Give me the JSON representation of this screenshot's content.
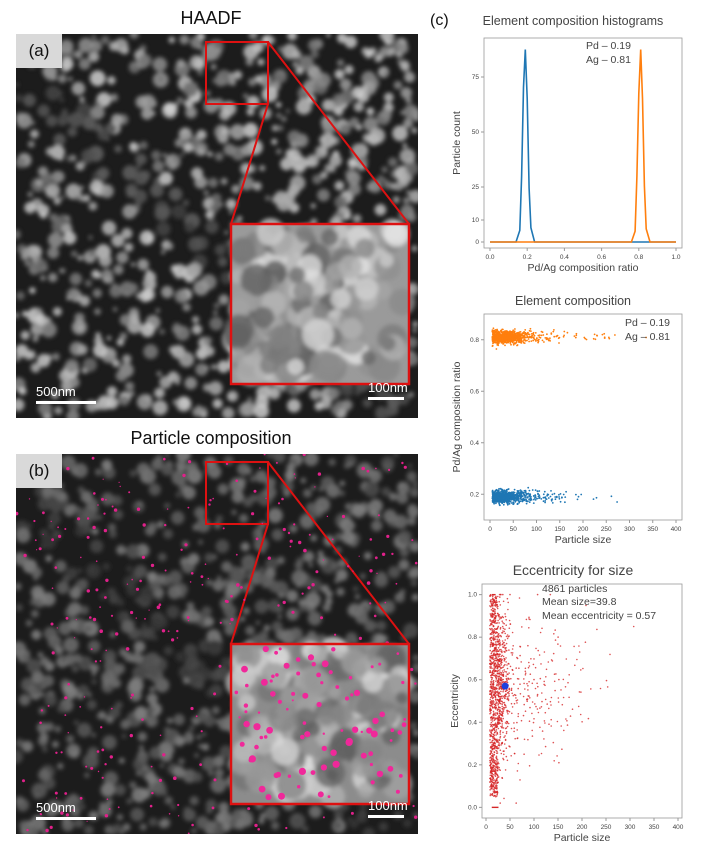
{
  "panel_a": {
    "title": "HAADF",
    "tag": "(a)",
    "scale_main": "500nm",
    "scale_inset": "100nm"
  },
  "panel_b": {
    "title": "Particle composition",
    "tag": "(b)",
    "scale_main": "500nm",
    "scale_inset": "100nm"
  },
  "panel_c": {
    "tag": "(c)"
  },
  "chart_data": [
    {
      "type": "line",
      "title": "Element composition histograms",
      "xlabel": "Pd/Ag composition ratio",
      "ylabel": "Particle count",
      "xlim": [
        0,
        1
      ],
      "ylim": [
        0,
        90
      ],
      "xticks": [
        "0.0",
        "0.2",
        "0.4",
        "0.6",
        "0.8",
        "1.0"
      ],
      "yticks": [
        "0",
        "10",
        "25",
        "50",
        "75"
      ],
      "annotations": [
        "Pd – 0.19",
        "Ag – 0.81"
      ],
      "series": [
        {
          "color": "#1f77b4",
          "x": [
            0,
            0.14,
            0.16,
            0.17,
            0.18,
            0.19,
            0.2,
            0.21,
            0.22,
            0.24,
            1.0
          ],
          "y": [
            0,
            0,
            5,
            30,
            70,
            87,
            65,
            25,
            6,
            0,
            0
          ]
        },
        {
          "color": "#ff7f0e",
          "x": [
            0,
            0.76,
            0.78,
            0.79,
            0.8,
            0.81,
            0.82,
            0.83,
            0.84,
            0.86,
            1.0
          ],
          "y": [
            0,
            0,
            5,
            30,
            68,
            87,
            65,
            25,
            6,
            0,
            0
          ]
        }
      ]
    },
    {
      "type": "scatter",
      "title": "Element composition",
      "xlabel": "Particle size",
      "ylabel": "Pd/Ag composition ratio",
      "xlim": [
        0,
        400
      ],
      "ylim": [
        0.1,
        0.9
      ],
      "xticks": [
        "0",
        "50",
        "100",
        "150",
        "200",
        "250",
        "300",
        "350",
        "400"
      ],
      "yticks": [
        "0.2",
        "0.4",
        "0.6",
        "0.8"
      ],
      "annotations": [
        "Pd – 0.19",
        "Ag – 0.81"
      ],
      "series": [
        {
          "color": "#ff7f0e",
          "center": 0.81
        },
        {
          "color": "#1f77b4",
          "center": 0.19
        }
      ]
    },
    {
      "type": "scatter",
      "title": "Eccentricity for size",
      "xlabel": "Particle size",
      "ylabel": "Eccentricity",
      "xlim": [
        0,
        400
      ],
      "ylim": [
        -0.05,
        1.05
      ],
      "xticks": [
        "0",
        "50",
        "100",
        "150",
        "200",
        "250",
        "300",
        "350",
        "400"
      ],
      "yticks": [
        "0.0",
        "0.2",
        "0.4",
        "0.6",
        "0.8",
        "1.0"
      ],
      "annotations": [
        "4861 particles",
        "Mean size=39.8",
        "Mean eccentricity = 0.57"
      ],
      "mean_point": {
        "x": 39.8,
        "y": 0.57,
        "color": "#1f3fdc"
      },
      "series": [
        {
          "color": "#d62728"
        }
      ]
    }
  ]
}
